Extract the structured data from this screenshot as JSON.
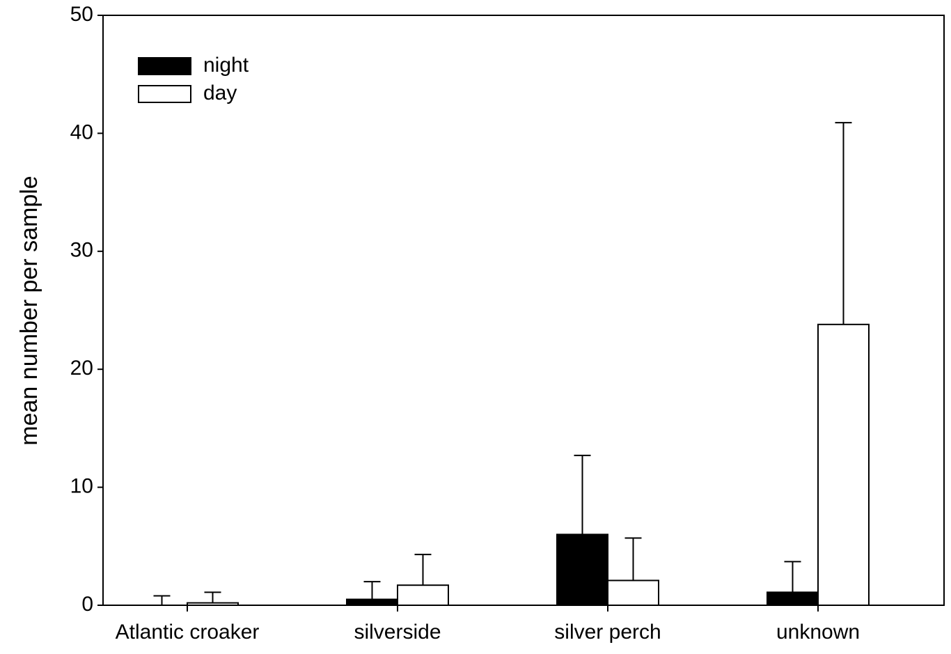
{
  "chart_data": {
    "type": "bar",
    "title": "",
    "xlabel": "",
    "ylabel": "mean number per sample",
    "ylim": [
      0,
      50
    ],
    "yticks": [
      0,
      10,
      20,
      30,
      40,
      50
    ],
    "grid": false,
    "legend_position": "top-left",
    "categories": [
      "Atlantic croaker",
      "silverside",
      "silver perch",
      "unknown"
    ],
    "series": [
      {
        "name": "night",
        "color": "#000000",
        "values": [
          0.0,
          0.5,
          6.0,
          1.1
        ],
        "error_upper": [
          0.8,
          2.0,
          12.7,
          3.7
        ]
      },
      {
        "name": "day",
        "color": "#ffffff",
        "values": [
          0.2,
          1.7,
          2.1,
          23.8
        ],
        "error_upper": [
          1.1,
          4.3,
          5.7,
          40.9
        ]
      }
    ]
  }
}
